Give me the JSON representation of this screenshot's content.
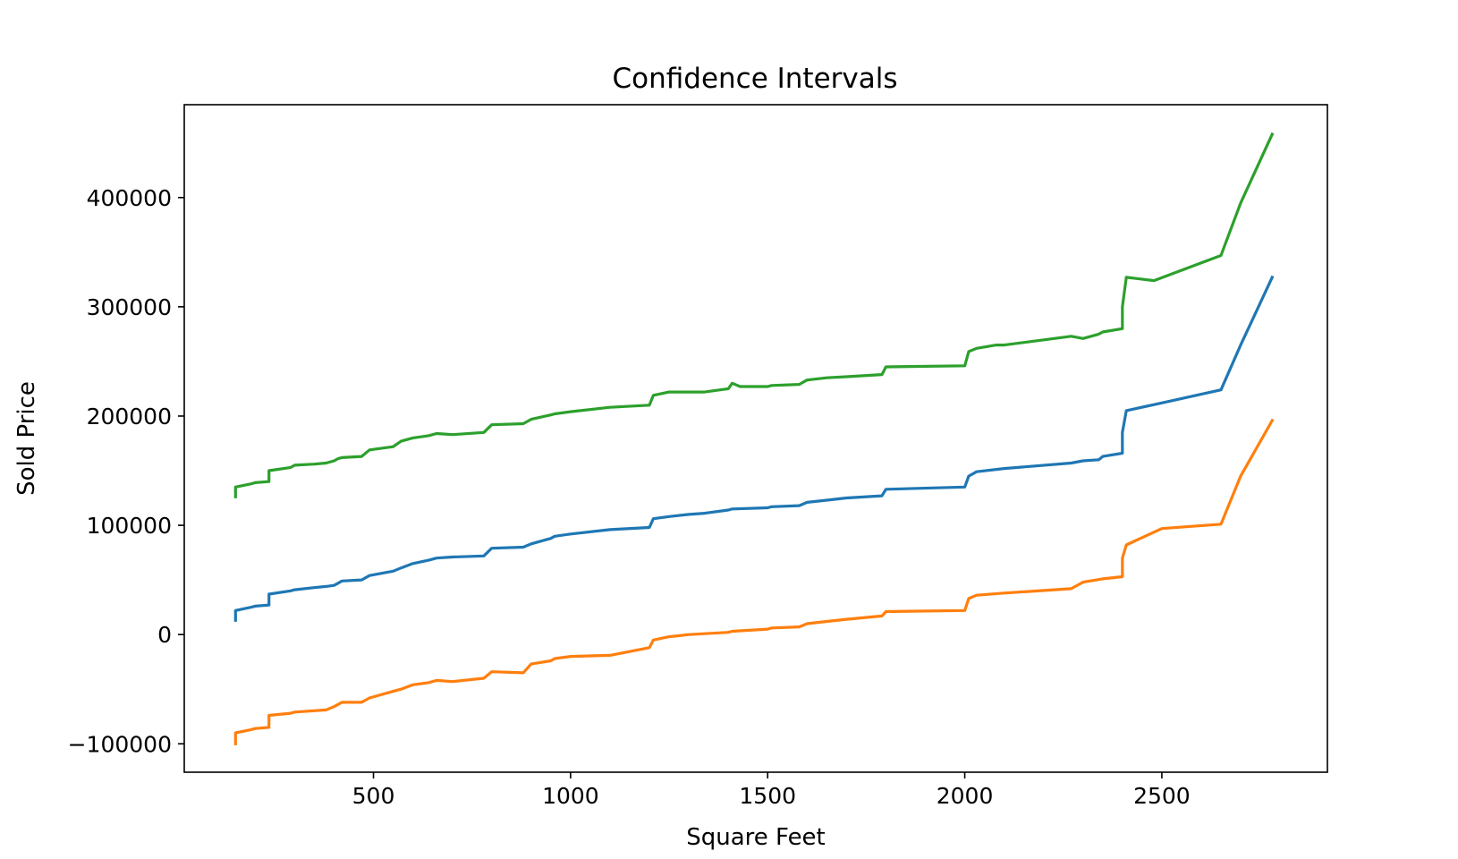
{
  "chart_data": {
    "type": "line",
    "title": "Confidence Intervals",
    "xlabel": "Square Feet",
    "ylabel": "Sold Price",
    "xlim": [
      20,
      2920
    ],
    "ylim": [
      -126000,
      485000
    ],
    "x_ticks": [
      {
        "value": 500,
        "label": "500"
      },
      {
        "value": 1000,
        "label": "1000"
      },
      {
        "value": 1500,
        "label": "1500"
      },
      {
        "value": 2000,
        "label": "2000"
      },
      {
        "value": 2500,
        "label": "2500"
      }
    ],
    "y_ticks": [
      {
        "value": -100000,
        "label": "−100000"
      },
      {
        "value": 0,
        "label": "0"
      },
      {
        "value": 100000,
        "label": "100000"
      },
      {
        "value": 200000,
        "label": "200000"
      },
      {
        "value": 300000,
        "label": "300000"
      },
      {
        "value": 400000,
        "label": "400000"
      }
    ],
    "grid": false,
    "series": [
      {
        "color": "#1f77b4",
        "x": [
          150,
          150,
          190,
          200,
          235,
          235,
          290,
          300,
          350,
          380,
          400,
          410,
          420,
          470,
          490,
          550,
          570,
          600,
          640,
          660,
          700,
          780,
          800,
          880,
          900,
          950,
          960,
          1000,
          1100,
          1200,
          1210,
          1250,
          1300,
          1340,
          1400,
          1410,
          1500,
          1510,
          1580,
          1600,
          1650,
          1700,
          1790,
          1800,
          2000,
          2010,
          2030,
          2100,
          2270,
          2300,
          2340,
          2350,
          2400,
          2400,
          2410,
          2500,
          2650,
          2700,
          2780
        ],
        "y": [
          13000,
          22000,
          25000,
          26000,
          27000,
          37000,
          40000,
          41000,
          43000,
          44000,
          45000,
          47000,
          49000,
          50000,
          54000,
          58000,
          61000,
          65000,
          68000,
          70000,
          71000,
          72000,
          79000,
          80000,
          83000,
          88000,
          90000,
          92000,
          96000,
          98000,
          106000,
          108000,
          110000,
          111000,
          114000,
          115000,
          116000,
          117000,
          118000,
          121000,
          123000,
          125000,
          127000,
          133000,
          135000,
          145000,
          149000,
          152000,
          157000,
          159000,
          160000,
          163000,
          166000,
          185000,
          205000,
          212000,
          224000,
          265000,
          327000
        ]
      },
      {
        "color": "#ff7f0e",
        "x": [
          150,
          150,
          190,
          200,
          235,
          235,
          290,
          300,
          380,
          400,
          410,
          420,
          470,
          490,
          550,
          570,
          600,
          640,
          660,
          700,
          780,
          800,
          880,
          900,
          950,
          960,
          1000,
          1100,
          1200,
          1210,
          1250,
          1300,
          1400,
          1410,
          1500,
          1510,
          1580,
          1600,
          1650,
          1700,
          1790,
          1800,
          2000,
          2010,
          2030,
          2100,
          2270,
          2300,
          2350,
          2400,
          2400,
          2410,
          2500,
          2650,
          2700,
          2780
        ],
        "y": [
          -100000,
          -90000,
          -87000,
          -86000,
          -85000,
          -74000,
          -72000,
          -71000,
          -69000,
          -66000,
          -64000,
          -62000,
          -62000,
          -58000,
          -52000,
          -50000,
          -46000,
          -44000,
          -42000,
          -43000,
          -40000,
          -34000,
          -35000,
          -27000,
          -24000,
          -22000,
          -20000,
          -19000,
          -12000,
          -5000,
          -2000,
          0,
          2000,
          3000,
          5000,
          6000,
          7000,
          10000,
          12000,
          14000,
          17000,
          21000,
          22000,
          33000,
          36000,
          38000,
          42000,
          48000,
          51000,
          53000,
          70000,
          82000,
          97000,
          101000,
          145000,
          196000
        ]
      },
      {
        "color": "#2ca02c",
        "x": [
          150,
          150,
          190,
          200,
          235,
          235,
          290,
          300,
          350,
          380,
          400,
          410,
          420,
          470,
          490,
          550,
          570,
          600,
          640,
          660,
          700,
          780,
          800,
          880,
          900,
          950,
          960,
          1000,
          1100,
          1200,
          1210,
          1250,
          1300,
          1340,
          1400,
          1410,
          1430,
          1500,
          1510,
          1580,
          1600,
          1650,
          1700,
          1790,
          1800,
          2000,
          2010,
          2030,
          2080,
          2100,
          2270,
          2300,
          2340,
          2350,
          2400,
          2400,
          2410,
          2480,
          2650,
          2700,
          2780
        ],
        "y": [
          126000,
          135000,
          138000,
          139000,
          140000,
          150000,
          153000,
          155000,
          156000,
          157000,
          159000,
          161000,
          162000,
          163000,
          169000,
          172000,
          177000,
          180000,
          182000,
          184000,
          183000,
          185000,
          192000,
          193000,
          197000,
          201000,
          202000,
          204000,
          208000,
          210000,
          219000,
          222000,
          222000,
          222000,
          225000,
          230000,
          227000,
          227000,
          228000,
          229000,
          233000,
          235000,
          236000,
          238000,
          245000,
          246000,
          259000,
          262000,
          265000,
          265000,
          273000,
          271000,
          275000,
          277000,
          280000,
          300000,
          327000,
          324000,
          347000,
          395000,
          458000
        ]
      }
    ]
  }
}
